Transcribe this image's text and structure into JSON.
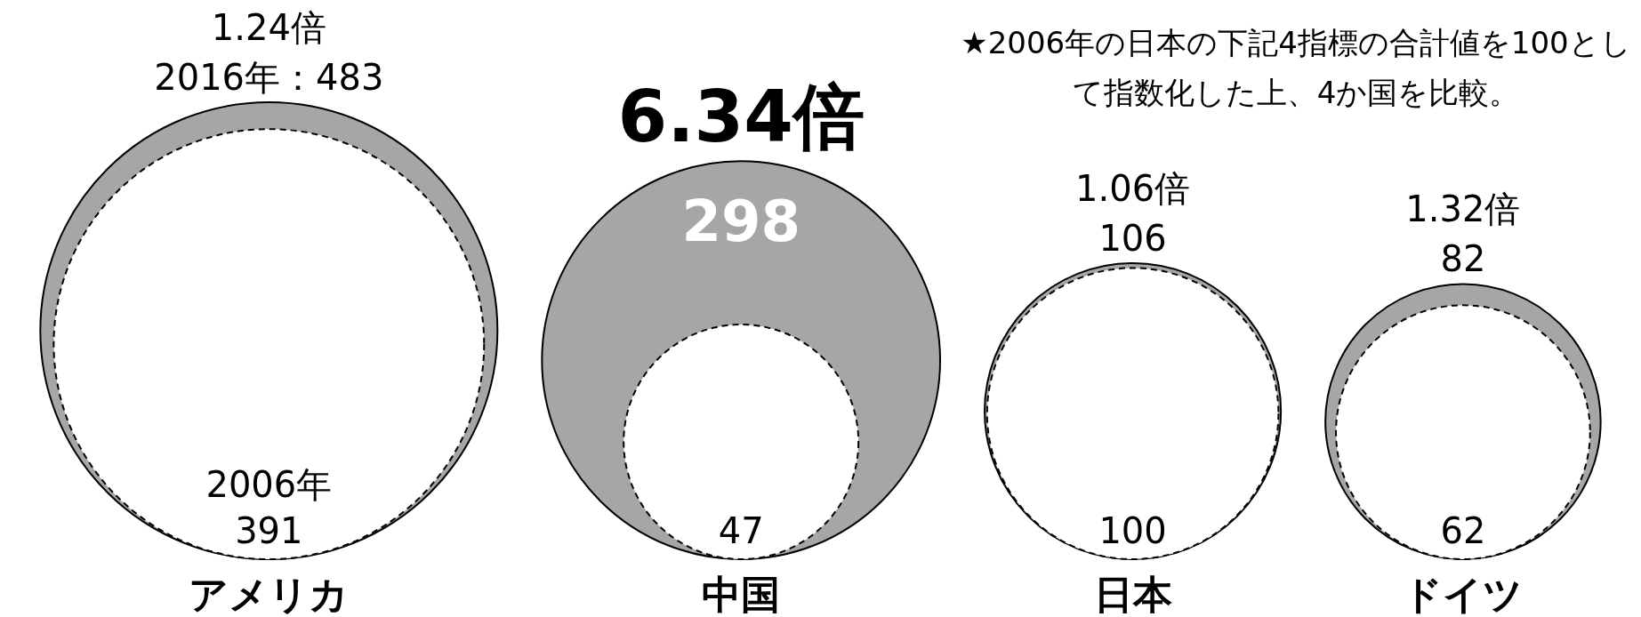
{
  "chart_data": {
    "type": "other",
    "categories": [
      "アメリカ",
      "中国",
      "日本",
      "ドイツ"
    ],
    "series": [
      {
        "color": "#a6a6a6",
        "line_style": "solid",
        "values": [
          483,
          298,
          106,
          82
        ],
        "value_labels": [
          "2016年：483",
          "298",
          "106",
          "82"
        ]
      },
      {
        "color": "#ffffff",
        "line_style": "dashed",
        "values": [
          391,
          47,
          100,
          62
        ],
        "value_labels": [
          "2006年\n391",
          "47",
          "100",
          "62"
        ]
      }
    ],
    "annotations": [
      "★2006年の日本の下記4指標の合計値を100として指数化した上、4か国を比較。",
      {
        "text": "1.24倍",
        "x": "アメリカ"
      },
      {
        "text": "6.34倍",
        "x": "中国"
      },
      {
        "text": "1.06倍",
        "x": "日本"
      },
      {
        "text": "1.32倍",
        "x": "ドイツ"
      }
    ]
  }
}
